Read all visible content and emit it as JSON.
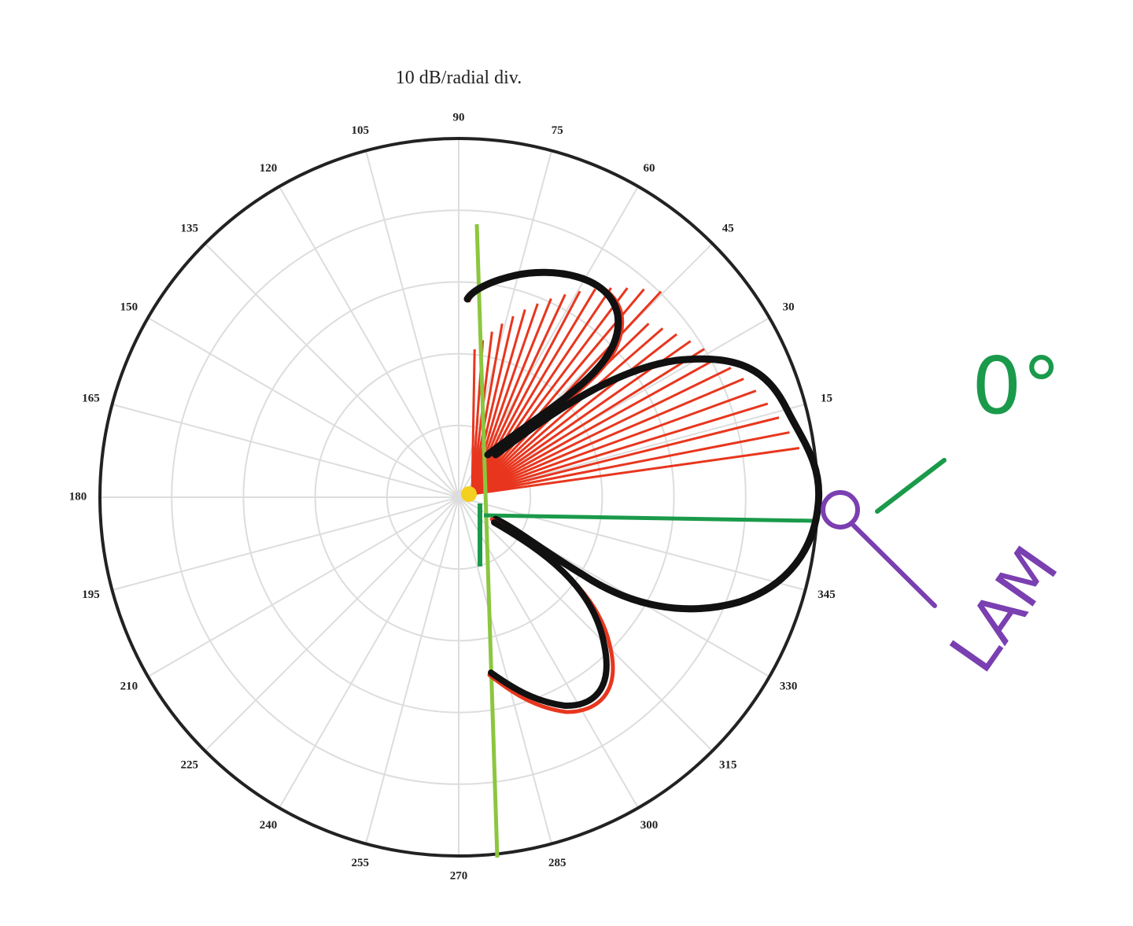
{
  "chart_data": {
    "type": "polar",
    "title": "10 dB/radial div.",
    "angle_ticks": [
      15,
      30,
      45,
      60,
      75,
      90,
      105,
      120,
      135,
      150,
      165,
      180,
      195,
      210,
      225,
      240,
      255,
      270,
      285,
      300,
      315,
      330,
      345
    ],
    "grid": true,
    "annotations": {
      "zero_label": "0°",
      "mic_label": "LAM"
    }
  }
}
